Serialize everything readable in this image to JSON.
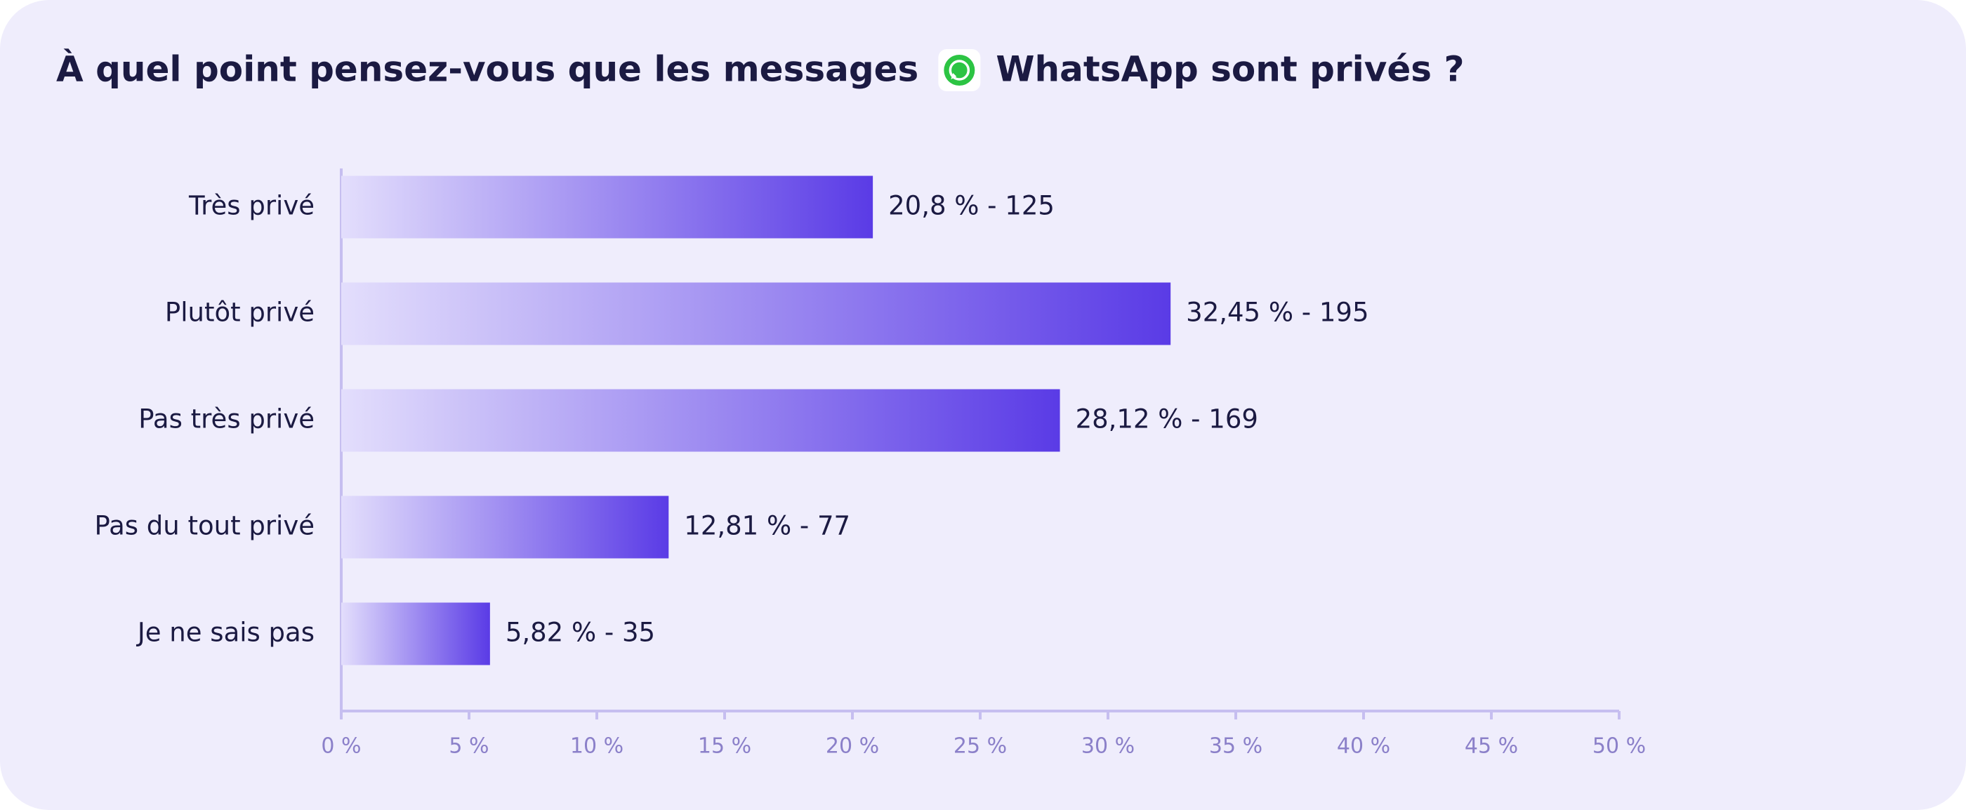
{
  "chart_data": {
    "type": "bar",
    "orientation": "horizontal",
    "title": [
      "À quel point pensez-vous que les messages",
      "WhatsApp sont privés ?"
    ],
    "categories": [
      "Très privé",
      "Plutôt privé",
      "Pas très privé",
      "Pas du tout privé",
      "Je ne sais pas"
    ],
    "values": [
      20.8,
      32.45,
      28.12,
      12.81,
      5.82
    ],
    "value_labels": [
      "20,8 % - 125",
      "32,45 % - 195",
      "28,12 % - 169",
      "12,81 % - 77",
      "5,82 % - 35"
    ],
    "color": "#5a3be6",
    "xlim": [
      0,
      50
    ],
    "xticks": [
      {
        "value": 0,
        "label": "0 %"
      },
      {
        "value": 5,
        "label": "5 %"
      },
      {
        "value": 10,
        "label": "10 %"
      },
      {
        "value": 15,
        "label": "15 %"
      },
      {
        "value": 20,
        "label": "20 %"
      },
      {
        "value": 25,
        "label": "25 %"
      },
      {
        "value": 30,
        "label": "30 %"
      },
      {
        "value": 35,
        "label": "35 %"
      },
      {
        "value": 40,
        "label": "40 %"
      },
      {
        "value": 45,
        "label": "45 %"
      },
      {
        "value": 50,
        "label": "50 %"
      }
    ],
    "grid": false
  }
}
